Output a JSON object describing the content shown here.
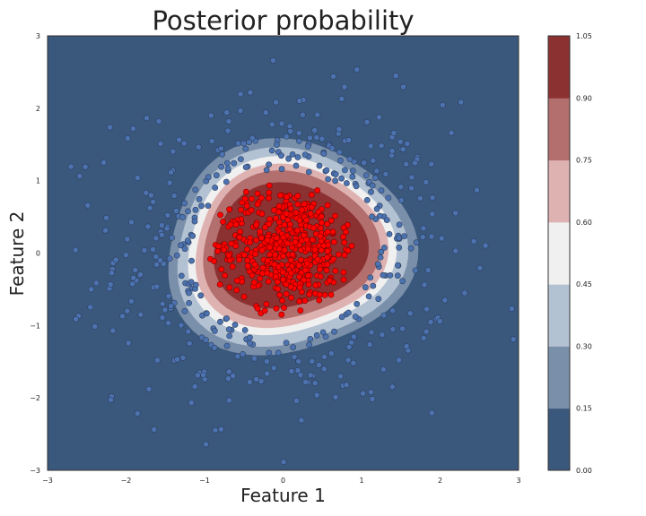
{
  "chart_data": {
    "type": "scatter",
    "title": "Posterior probability",
    "xlabel": "Feature 1",
    "ylabel": "Feature 2",
    "xlim": [
      -3,
      3
    ],
    "ylim": [
      -3,
      3
    ],
    "x_ticks": [
      "−3",
      "−2",
      "−1",
      "0",
      "1",
      "2",
      "3"
    ],
    "y_ticks": [
      "−3",
      "−2",
      "−1",
      "0",
      "1",
      "2",
      "3"
    ],
    "grid": false,
    "background_series": "filled contour of posterior probability",
    "contour_levels": [
      0.0,
      0.15,
      0.3,
      0.45,
      0.6,
      0.75,
      0.9,
      1.05
    ],
    "colorbar": {
      "tick_labels": [
        "0.00",
        "0.15",
        "0.30",
        "0.45",
        "0.60",
        "0.75",
        "0.90",
        "1.05"
      ],
      "band_colors": [
        "#3a577c",
        "#7a8fa9",
        "#b3c2d3",
        "#f0f0f0",
        "#dfb2b2",
        "#b36e6e",
        "#8b3131"
      ]
    },
    "series": [
      {
        "class": 0,
        "color": "#4c72b0",
        "approx_count": 500,
        "distribution": "outer ring, radius ~1.1 to 3"
      },
      {
        "class": 1,
        "color": "#ff0000",
        "approx_count": 500,
        "distribution": "inner cluster, radius < 1"
      }
    ]
  }
}
